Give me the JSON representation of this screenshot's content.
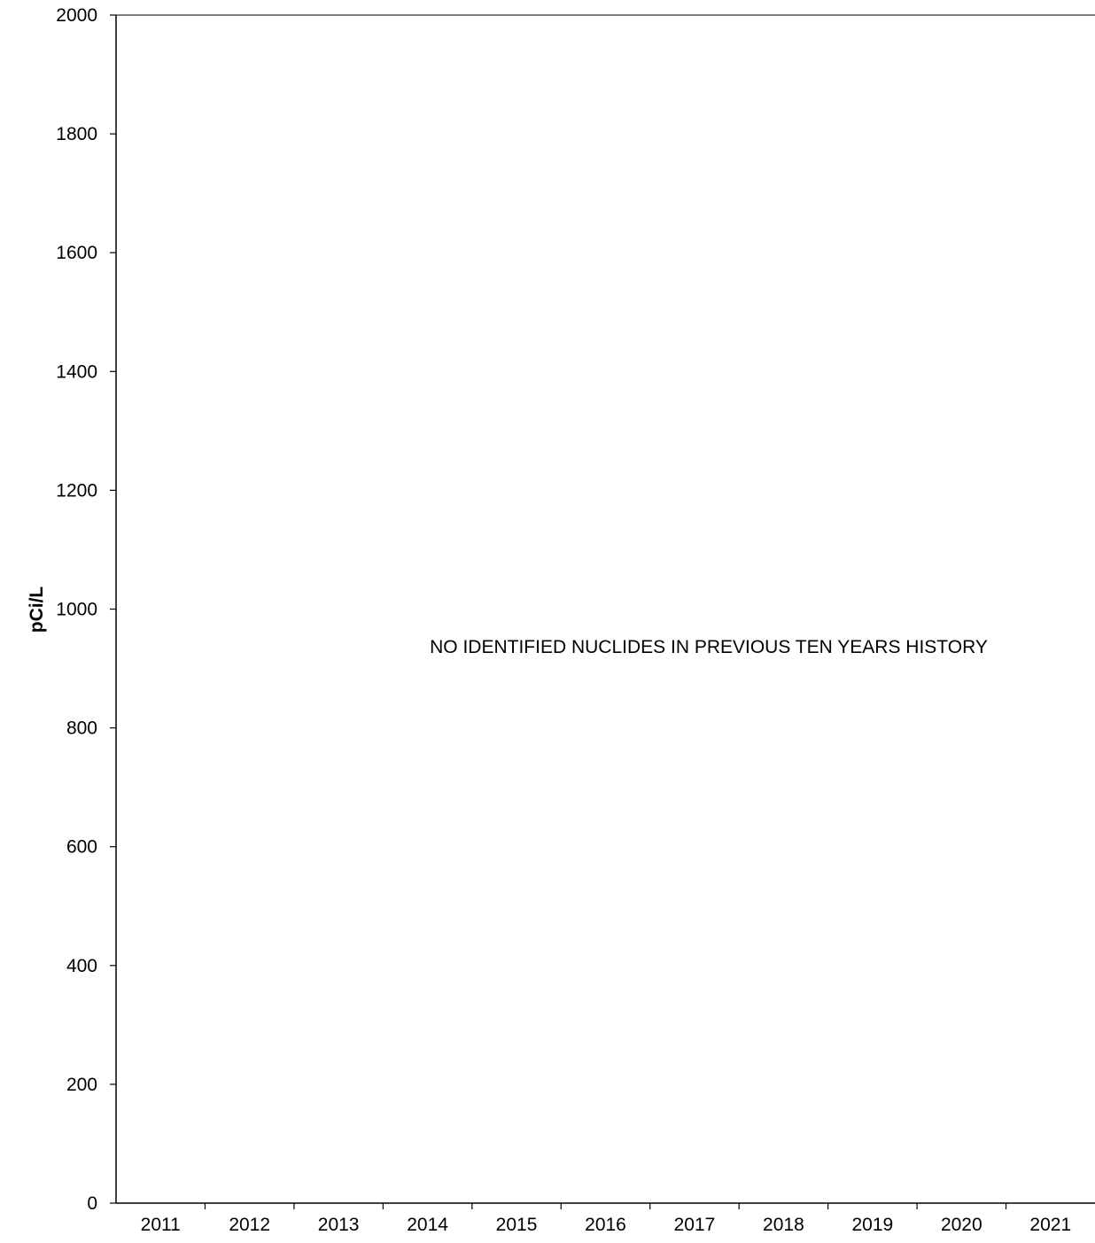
{
  "chart_data": {
    "type": "line",
    "title": "",
    "xlabel": "",
    "ylabel": "pCi/L",
    "categories": [
      "2011",
      "2012",
      "2013",
      "2014",
      "2015",
      "2016",
      "2017",
      "2018",
      "2019",
      "2020",
      "2021"
    ],
    "ylim": [
      0,
      2000
    ],
    "yticks": [
      "0",
      "200",
      "400",
      "600",
      "800",
      "1000",
      "1200",
      "1400",
      "1600",
      "1800",
      "2000"
    ],
    "series": [],
    "annotation": "NO IDENTIFIED NUCLIDES IN PREVIOUS TEN YEARS HISTORY",
    "grid": false,
    "legend": "none",
    "colors": {
      "axis": "#000000",
      "top_border": "#808080",
      "text": "#000000"
    }
  }
}
